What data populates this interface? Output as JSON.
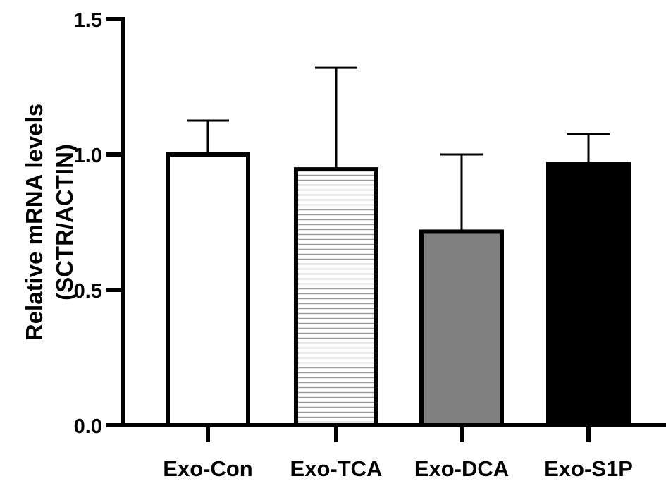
{
  "chart_data": {
    "type": "bar",
    "title": "",
    "xlabel": "",
    "ylabel": "Relative mRNA levels",
    "ylabel_line2": "(SCTR/ACTIN)",
    "ylim": [
      0,
      1.5
    ],
    "yticks": [
      0.0,
      0.5,
      1.0,
      1.5
    ],
    "ytick_labels": [
      "0.0",
      "0.5",
      "1.0",
      "1.5"
    ],
    "categories": [
      "Exo-Con",
      "Exo-TCA",
      "Exo-DCA",
      "Exo-S1P"
    ],
    "values": [
      1.0,
      0.945,
      0.715,
      0.965
    ],
    "error_upper": [
      0.125,
      0.375,
      0.285,
      0.11
    ],
    "fills": [
      "white",
      "horizontal-lines",
      "#808080",
      "#000000"
    ],
    "grid": false
  }
}
